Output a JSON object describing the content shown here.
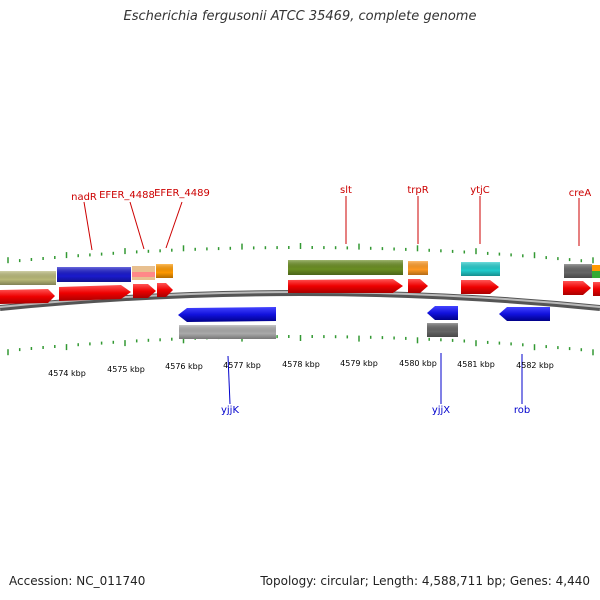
{
  "title": "Escherichia fergusonii ATCC 35469, complete genome",
  "footer": {
    "accession": "Accession: NC_011740",
    "summary": "Topology: circular; Length: 4,588,711 bp; Genes: 4,440"
  },
  "colors": {
    "forward_label": "#cc0000",
    "reverse_label": "#0000cc",
    "tick": "#339933",
    "backbone": "#888888"
  },
  "ruler": {
    "unit": "kbp",
    "labels": [
      "4574 kbp",
      "4575 kbp",
      "4576 kbp",
      "4577 kbp",
      "4578 kbp",
      "4579 kbp",
      "4580 kbp",
      "4581 kbp",
      "4582 kbp"
    ]
  },
  "gene_labels": {
    "forward": [
      "nadR",
      "EFER_4488",
      "EFER_4489",
      "slt",
      "trpR",
      "ytjC",
      "creA"
    ],
    "reverse": [
      "yjjK",
      "yjjX",
      "rob"
    ]
  },
  "feature_colors": {
    "cog_categories": [
      "#b8b878",
      "#1a1acc",
      "#e8c090",
      "#ff9900",
      "#6b8e23",
      "#ff9922",
      "#22cccc",
      "#666666",
      "#33aa33"
    ],
    "cds": "#ff0000",
    "reverse_cog": [
      "#1a1acc",
      "#aaaaaa",
      "#666666"
    ]
  }
}
